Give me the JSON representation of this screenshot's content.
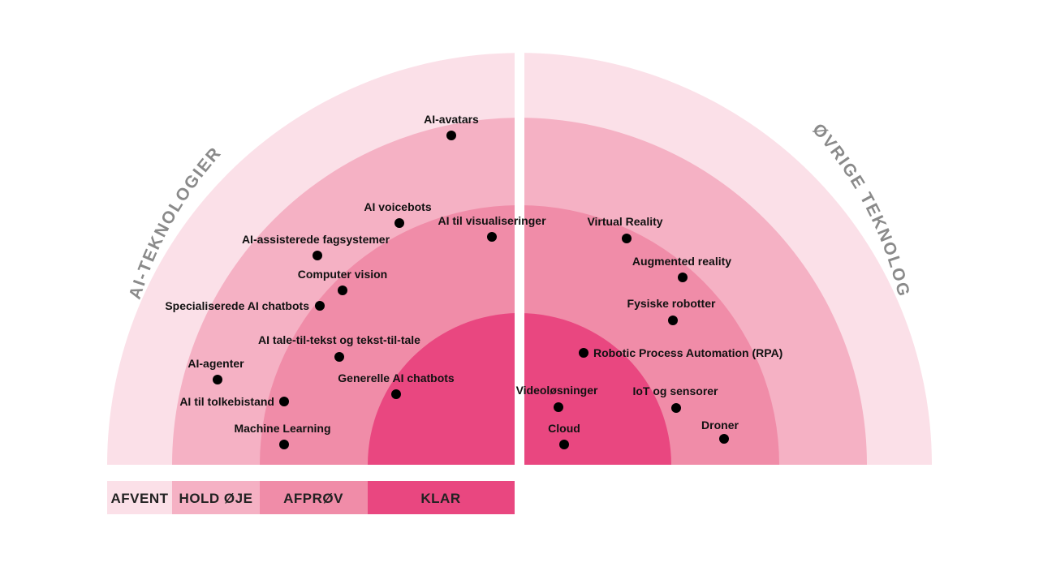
{
  "sections": {
    "left": "AI-TEKNOLOGIER",
    "right": "ØVRIGE TEKNOLOGIER"
  },
  "rings": [
    {
      "name": "AFVENT",
      "color": "#fbe0e8"
    },
    {
      "name": "HOLD ØJE",
      "color": "#f5b1c4"
    },
    {
      "name": "AFPRØV",
      "color": "#f08ca8"
    },
    {
      "name": "KLAR",
      "color": "#e94780"
    }
  ],
  "items": [
    {
      "id": "ai-avatars",
      "label": "AI-avatars",
      "section": "left",
      "ring": "HOLD ØJE"
    },
    {
      "id": "ai-voicebots",
      "label": "AI voicebots",
      "section": "left",
      "ring": "HOLD ØJE"
    },
    {
      "id": "ai-til-visualiseringer",
      "label": "AI til visualiseringer",
      "section": "left",
      "ring": "AFPRØV"
    },
    {
      "id": "ai-assisterede-fagsystemer",
      "label": "AI-assisterede fagsystemer",
      "section": "left",
      "ring": "HOLD ØJE"
    },
    {
      "id": "computer-vision",
      "label": "Computer vision",
      "section": "left",
      "ring": "AFPRØV"
    },
    {
      "id": "specialiserede-ai-chatbots",
      "label": "Specialiserede AI chatbots",
      "section": "left",
      "ring": "AFPRØV"
    },
    {
      "id": "ai-tale-til-tekst",
      "label": "AI tale-til-tekst og tekst-til-tale",
      "section": "left",
      "ring": "AFPRØV"
    },
    {
      "id": "ai-agenter",
      "label": "AI-agenter",
      "section": "left",
      "ring": "HOLD ØJE"
    },
    {
      "id": "generelle-ai-chatbots",
      "label": "Generelle AI chatbots",
      "section": "left",
      "ring": "KLAR"
    },
    {
      "id": "ai-til-tolkebistand",
      "label": "AI til tolkebistand",
      "section": "left",
      "ring": "AFPRØV"
    },
    {
      "id": "machine-learning",
      "label": "Machine Learning",
      "section": "left",
      "ring": "AFPRØV"
    },
    {
      "id": "virtual-reality",
      "label": "Virtual Reality",
      "section": "right",
      "ring": "AFPRØV"
    },
    {
      "id": "augmented-reality",
      "label": "Augmented reality",
      "section": "right",
      "ring": "AFPRØV"
    },
    {
      "id": "fysiske-robotter",
      "label": "Fysiske robotter",
      "section": "right",
      "ring": "AFPRØV"
    },
    {
      "id": "rpa",
      "label": "Robotic Process Automation (RPA)",
      "section": "right",
      "ring": "KLAR"
    },
    {
      "id": "videolosninger",
      "label": "Videoløsninger",
      "section": "right",
      "ring": "KLAR"
    },
    {
      "id": "iot-og-sensorer",
      "label": "IoT og sensorer",
      "section": "right",
      "ring": "AFPRØV"
    },
    {
      "id": "cloud",
      "label": "Cloud",
      "section": "right",
      "ring": "KLAR"
    },
    {
      "id": "droner",
      "label": "Droner",
      "section": "right",
      "ring": "HOLD ØJE"
    }
  ],
  "legend": [
    "AFVENT",
    "HOLD ØJE",
    "AFPRØV",
    "KLAR"
  ]
}
